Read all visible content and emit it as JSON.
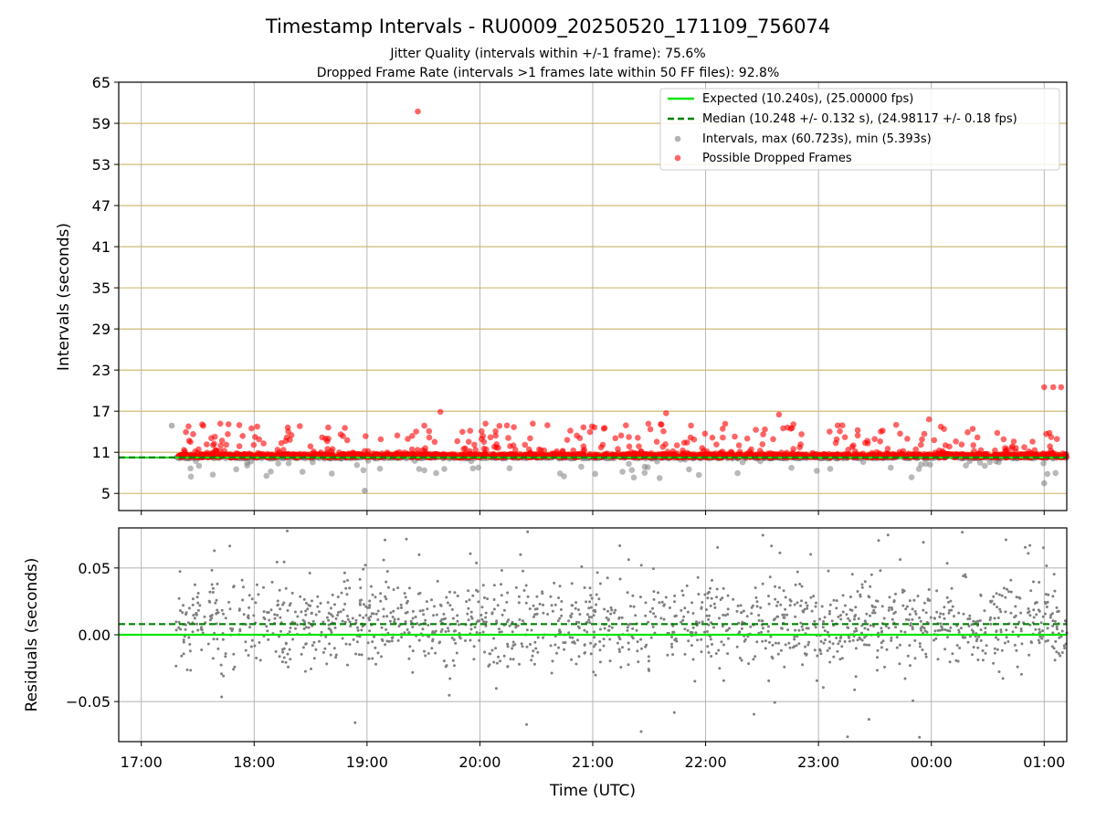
{
  "title": "Timestamp Intervals - RU0009_20250520_171109_756074",
  "subtitle_1": "Jitter Quality (intervals within +/-1 frame): 75.6%",
  "subtitle_2": "Dropped Frame Rate (intervals >1 frames late within 50 FF files): 92.8%",
  "colors": {
    "expected": "#00e600",
    "median": "#008000",
    "intervals": "#808080",
    "dropped": "#ff0000",
    "hgrid_top": "#c8b464",
    "grid": "#b0b0b0"
  },
  "chart_data": [
    {
      "type": "scatter",
      "ylabel": "Intervals (seconds)",
      "ylim": [
        2.5,
        65
      ],
      "yticks": [
        5,
        11,
        17,
        23,
        29,
        35,
        41,
        47,
        53,
        59,
        65
      ],
      "ytick_labels": [
        "5",
        "11",
        "17",
        "23",
        "29",
        "35",
        "41",
        "47",
        "53",
        "59",
        "65"
      ],
      "xlim_hours": [
        16.8,
        25.2
      ],
      "legend_position": "top-right",
      "legend": [
        {
          "label": "Expected (10.240s), (25.00000 fps)",
          "kind": "line-solid"
        },
        {
          "label": "Median (10.248 +/- 0.132 s), (24.98117 +/- 0.18 fps)",
          "kind": "line-dashed"
        },
        {
          "label": "Intervals, max (60.723s), min (5.393s)",
          "kind": "dot-gray"
        },
        {
          "label": "Possible Dropped Frames",
          "kind": "dot-red"
        }
      ],
      "expected_interval": 10.24,
      "median_interval": 10.248,
      "intervals_max": 60.723,
      "intervals_min": 5.393,
      "normal_band": [
        10.1,
        10.45
      ],
      "time_range_hours": [
        17.3,
        25.2
      ],
      "dropped_band": [
        10.25,
        10.75
      ],
      "notable_points": [
        {
          "x": 19.45,
          "y": 60.723,
          "series": "dropped"
        },
        {
          "x": 25.15,
          "y": 20.5,
          "series": "dropped"
        },
        {
          "x": 25.08,
          "y": 20.5,
          "series": "dropped"
        },
        {
          "x": 25.0,
          "y": 20.5,
          "series": "dropped"
        },
        {
          "x": 18.98,
          "y": 5.393,
          "series": "intervals"
        },
        {
          "x": 17.27,
          "y": 14.9,
          "series": "intervals"
        },
        {
          "x": 19.65,
          "y": 16.9,
          "series": "dropped"
        },
        {
          "x": 21.65,
          "y": 16.7,
          "series": "dropped"
        },
        {
          "x": 22.65,
          "y": 16.5,
          "series": "dropped"
        },
        {
          "x": 23.98,
          "y": 15.8,
          "series": "dropped"
        },
        {
          "x": 25.0,
          "y": 6.5,
          "series": "intervals"
        }
      ]
    },
    {
      "type": "scatter",
      "xlabel": "Time (UTC)",
      "ylabel": "Residuals (seconds)",
      "ylim": [
        -0.08,
        0.08
      ],
      "yticks": [
        -0.05,
        0.0,
        0.05
      ],
      "ytick_labels": [
        "−0.05",
        "0.00",
        "0.05"
      ],
      "xlim_hours": [
        16.8,
        25.2
      ],
      "xticks_hours": [
        17,
        18,
        19,
        20,
        21,
        22,
        23,
        24,
        25
      ],
      "xtick_labels": [
        "17:00",
        "18:00",
        "19:00",
        "20:00",
        "21:00",
        "22:00",
        "23:00",
        "00:00",
        "01:00"
      ],
      "expected_residual": 0.0,
      "median_residual": 0.008,
      "residual_spread": 0.02
    }
  ]
}
